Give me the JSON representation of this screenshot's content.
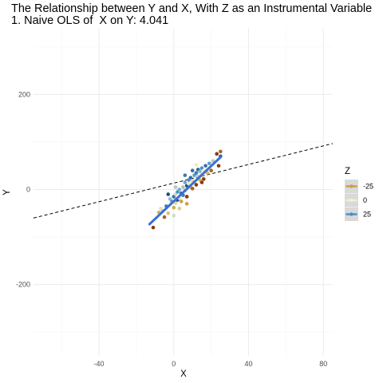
{
  "chart_data": {
    "type": "scatter",
    "title": "The Relationship between Y and X, With Z as an Instrumental Variable",
    "subtitle": "1. Naive OLS of  X on Y: 4.041",
    "xlabel": "X",
    "ylabel": "Y",
    "xlim": [
      -75,
      85
    ],
    "ylim": [
      -350,
      340
    ],
    "x_ticks": [
      -40,
      0,
      40,
      80
    ],
    "y_ticks": [
      -200,
      0,
      200
    ],
    "grid": true,
    "legend": {
      "title": "Z",
      "placement": "right",
      "entries": [
        {
          "label": "-25",
          "color": "#c9a23f"
        },
        {
          "label": "0",
          "color": "#f2f2c8"
        },
        {
          "label": "25",
          "color": "#4a90c4"
        }
      ]
    },
    "color_scale": [
      {
        "z": -30,
        "color": "#8b3a0f"
      },
      {
        "z": -25,
        "color": "#c9a23f"
      },
      {
        "z": 0,
        "color": "#f2f2c8"
      },
      {
        "z": 25,
        "color": "#4a90c4"
      },
      {
        "z": 35,
        "color": "#1f4e8c"
      }
    ],
    "fit_line": {
      "x": [
        -13,
        25
      ],
      "y": [
        -73,
        68
      ],
      "color": "#3b6fd8"
    },
    "naive_ols_line": {
      "intercept": 13.5,
      "slope": 0.98,
      "style": "dashed"
    },
    "points": [
      {
        "x": -11,
        "y": -80,
        "z": -30
      },
      {
        "x": -8,
        "y": -48,
        "z": -20
      },
      {
        "x": -6,
        "y": -45,
        "z": 10
      },
      {
        "x": -5,
        "y": -58,
        "z": -28
      },
      {
        "x": -4,
        "y": -35,
        "z": 28
      },
      {
        "x": -3,
        "y": -50,
        "z": -15
      },
      {
        "x": -2,
        "y": -32,
        "z": 0
      },
      {
        "x": -2,
        "y": -20,
        "z": 15
      },
      {
        "x": -1,
        "y": -25,
        "z": 22
      },
      {
        "x": 0,
        "y": -15,
        "z": 30
      },
      {
        "x": 0,
        "y": -38,
        "z": -22
      },
      {
        "x": 1,
        "y": -10,
        "z": 5
      },
      {
        "x": 1,
        "y": -28,
        "z": -10
      },
      {
        "x": 2,
        "y": -5,
        "z": 25
      },
      {
        "x": 2,
        "y": -22,
        "z": 35
      },
      {
        "x": 3,
        "y": -18,
        "z": -5
      },
      {
        "x": 3,
        "y": 0,
        "z": 18
      },
      {
        "x": 4,
        "y": -8,
        "z": 32
      },
      {
        "x": 4,
        "y": -25,
        "z": -25
      },
      {
        "x": 5,
        "y": 5,
        "z": 12
      },
      {
        "x": 5,
        "y": -12,
        "z": 28
      },
      {
        "x": 6,
        "y": -2,
        "z": -18
      },
      {
        "x": 6,
        "y": 15,
        "z": 20
      },
      {
        "x": 7,
        "y": 8,
        "z": 35
      },
      {
        "x": 7,
        "y": -15,
        "z": -30
      },
      {
        "x": 8,
        "y": 12,
        "z": 2
      },
      {
        "x": 8,
        "y": 20,
        "z": 25
      },
      {
        "x": 9,
        "y": 5,
        "z": -22
      },
      {
        "x": 9,
        "y": 25,
        "z": 30
      },
      {
        "x": 10,
        "y": 18,
        "z": -8
      },
      {
        "x": 10,
        "y": 2,
        "z": -28
      },
      {
        "x": 11,
        "y": 30,
        "z": 22
      },
      {
        "x": 11,
        "y": 15,
        "z": -15
      },
      {
        "x": 12,
        "y": 35,
        "z": 28
      },
      {
        "x": 12,
        "y": 10,
        "z": -30
      },
      {
        "x": 13,
        "y": 28,
        "z": 8
      },
      {
        "x": 13,
        "y": 42,
        "z": 32
      },
      {
        "x": 14,
        "y": 20,
        "z": -20
      },
      {
        "x": 14,
        "y": 38,
        "z": 15
      },
      {
        "x": 15,
        "y": 30,
        "z": -25
      },
      {
        "x": 15,
        "y": 45,
        "z": 25
      },
      {
        "x": 16,
        "y": 22,
        "z": -30
      },
      {
        "x": 16,
        "y": 40,
        "z": 0
      },
      {
        "x": 17,
        "y": 50,
        "z": 30
      },
      {
        "x": 18,
        "y": 35,
        "z": -18
      },
      {
        "x": 19,
        "y": 55,
        "z": 22
      },
      {
        "x": 20,
        "y": 40,
        "z": -28
      },
      {
        "x": 21,
        "y": 60,
        "z": 10
      },
      {
        "x": 23,
        "y": 75,
        "z": -30
      },
      {
        "x": 24,
        "y": 50,
        "z": -30
      },
      {
        "x": 25,
        "y": 80,
        "z": -28
      },
      {
        "x": 25,
        "y": 70,
        "z": 32
      },
      {
        "x": -7,
        "y": -40,
        "z": -5
      },
      {
        "x": 1,
        "y": 5,
        "z": 10
      },
      {
        "x": 6,
        "y": 30,
        "z": 28
      },
      {
        "x": 10,
        "y": 40,
        "z": 30
      },
      {
        "x": 12,
        "y": 52,
        "z": -2
      },
      {
        "x": 3,
        "y": -40,
        "z": -12
      },
      {
        "x": 7,
        "y": -30,
        "z": -25
      },
      {
        "x": 15,
        "y": 15,
        "z": -30
      },
      {
        "x": -3,
        "y": -10,
        "z": 35
      },
      {
        "x": 0,
        "y": -55,
        "z": 5
      }
    ]
  }
}
